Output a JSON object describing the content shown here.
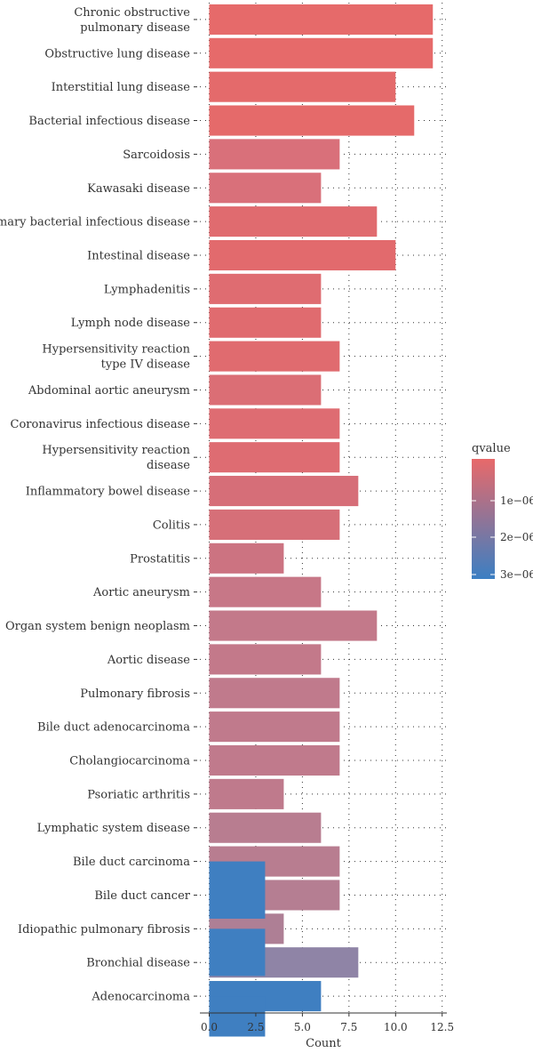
{
  "chart_data": {
    "type": "bar",
    "orientation": "horizontal",
    "xlabel": "Count",
    "xlim": [
      -0.5,
      12.75
    ],
    "x_ticks": [
      "0.0",
      "2.5",
      "5.0",
      "7.5",
      "10.0",
      "12.5"
    ],
    "x_tick_values": [
      0,
      2.5,
      5,
      7.5,
      10,
      12.5
    ],
    "grid": "dotted",
    "categories": [
      "Chronic obstructive\npulmonary disease",
      "Obstructive lung disease",
      "Interstitial lung disease",
      "Bacterial infectious disease",
      "Sarcoidosis",
      "Kawasaki disease",
      "Primary bacterial infectious disease",
      "Intestinal disease",
      "Lymphadenitis",
      "Lymph node disease",
      "Hypersensitivity reaction\ntype IV disease",
      "Abdominal aortic aneurysm",
      "Coronavirus infectious disease",
      "Hypersensitivity reaction\ndisease",
      "Inflammatory bowel disease",
      "Colitis",
      "Prostatitis",
      "Aortic aneurysm",
      "Organ system benign neoplasm",
      "Aortic disease",
      "Pulmonary fibrosis",
      "Bile duct adenocarcinoma",
      "Cholangiocarcinoma",
      "Psoriatic arthritis",
      "Lymphatic system disease",
      "Bile duct carcinoma",
      "Bile duct cancer",
      "Idiopathic pulmonary fibrosis",
      "Bronchial disease",
      "Adenocarcinoma"
    ],
    "values": [
      12,
      12,
      10,
      11,
      7,
      6,
      9,
      10,
      6,
      6,
      7,
      6,
      7,
      7,
      8,
      7,
      4,
      6,
      9,
      6,
      7,
      7,
      7,
      4,
      6,
      7,
      7,
      4,
      8,
      6
    ],
    "colors": [
      "#e66a6a",
      "#e66a6a",
      "#e46a6b",
      "#e56a6a",
      "#d9707a",
      "#d9707a",
      "#e06b6f",
      "#e26a6d",
      "#df6c71",
      "#e06b6f",
      "#e06b6f",
      "#db6e75",
      "#de6c72",
      "#de6c72",
      "#d66e78",
      "#d66f78",
      "#cc7381",
      "#c77787",
      "#c3798a",
      "#c3798a",
      "#c07a8c",
      "#c07a8c",
      "#c07a8c",
      "#bf7a8c",
      "#b87d90",
      "#b87d90",
      "#b57e92",
      "#ae7f95",
      "#8f84a6",
      "#3f7fc1"
    ],
    "overlay_bars": [
      {
        "category": "Bile duct carcinoma",
        "value": 3,
        "color": "#3f7fc1",
        "rows_spanned": 1.7
      },
      {
        "category": "Idiopathic pulmonary fibrosis",
        "value": 3,
        "color": "#3f7fc1",
        "rows_spanned": 1.4
      },
      {
        "category": "Adenocarcinoma",
        "value": 3,
        "color": "#3f7fc1",
        "rows_spanned": 1.2
      }
    ],
    "legend": {
      "title": "qvalue",
      "placement": "right",
      "gradient_colors": [
        "#e8696a",
        "#3b7fc3"
      ],
      "ticks": [
        "1e−06",
        "2e−06",
        "3e−06"
      ]
    }
  }
}
